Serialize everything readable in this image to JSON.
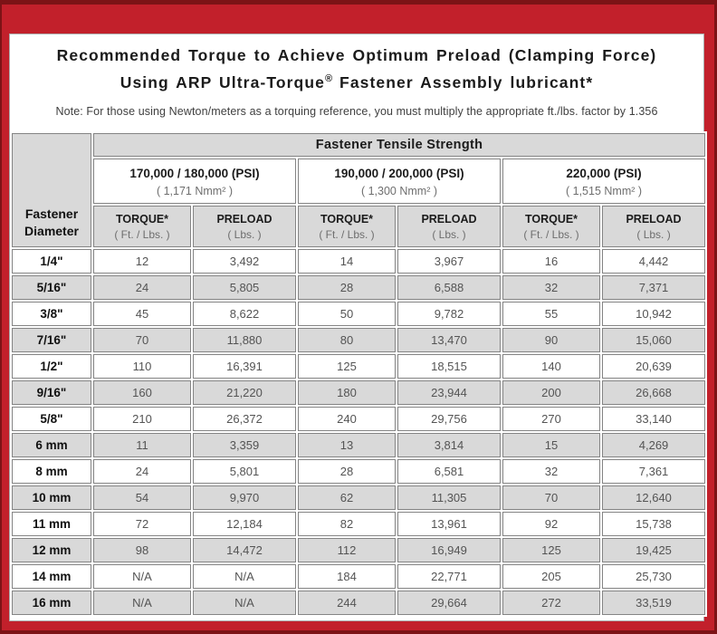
{
  "title": {
    "line1": "Recommended Torque to Achieve Optimum Preload (Clamping Force)",
    "line2_prefix": "Using ARP Ultra-Torque",
    "line2_reg": "®",
    "line2_suffix": " Fastener Assembly lubricant*"
  },
  "note": "Note: For those using Newton/meters as a torquing reference, you must multiply the appropriate ft./lbs. factor by 1.356",
  "colors": {
    "frame_red": "#c2202b",
    "frame_dark_edge": "#7c1316",
    "header_gray": "#d9d9d9",
    "grid_border": "#848484"
  },
  "table": {
    "corner_header": "Fastener Diameter",
    "tensile_header": "Fastener Tensile Strength",
    "groups": [
      {
        "psi": "170,000 / 180,000 (PSI)",
        "nmm": "( 1,171 Nmm² )"
      },
      {
        "psi": "190,000 / 200,000 (PSI)",
        "nmm": "( 1,300 Nmm² )"
      },
      {
        "psi": "220,000 (PSI)",
        "nmm": "( 1,515 Nmm² )"
      }
    ],
    "subheaders": {
      "torque_label": "TORQUE*",
      "torque_unit": "( Ft. / Lbs. )",
      "preload_label": "PRELOAD",
      "preload_unit": "( Lbs. )"
    },
    "rows": [
      {
        "diameter": "1/4\"",
        "values": [
          "12",
          "3,492",
          "14",
          "3,967",
          "16",
          "4,442"
        ]
      },
      {
        "diameter": "5/16\"",
        "values": [
          "24",
          "5,805",
          "28",
          "6,588",
          "32",
          "7,371"
        ]
      },
      {
        "diameter": "3/8\"",
        "values": [
          "45",
          "8,622",
          "50",
          "9,782",
          "55",
          "10,942"
        ]
      },
      {
        "diameter": "7/16\"",
        "values": [
          "70",
          "11,880",
          "80",
          "13,470",
          "90",
          "15,060"
        ]
      },
      {
        "diameter": "1/2\"",
        "values": [
          "110",
          "16,391",
          "125",
          "18,515",
          "140",
          "20,639"
        ]
      },
      {
        "diameter": "9/16\"",
        "values": [
          "160",
          "21,220",
          "180",
          "23,944",
          "200",
          "26,668"
        ]
      },
      {
        "diameter": "5/8\"",
        "values": [
          "210",
          "26,372",
          "240",
          "29,756",
          "270",
          "33,140"
        ]
      },
      {
        "diameter": "6 mm",
        "values": [
          "11",
          "3,359",
          "13",
          "3,814",
          "15",
          "4,269"
        ]
      },
      {
        "diameter": "8 mm",
        "values": [
          "24",
          "5,801",
          "28",
          "6,581",
          "32",
          "7,361"
        ]
      },
      {
        "diameter": "10 mm",
        "values": [
          "54",
          "9,970",
          "62",
          "11,305",
          "70",
          "12,640"
        ]
      },
      {
        "diameter": "11 mm",
        "values": [
          "72",
          "12,184",
          "82",
          "13,961",
          "92",
          "15,738"
        ]
      },
      {
        "diameter": "12 mm",
        "values": [
          "98",
          "14,472",
          "112",
          "16,949",
          "125",
          "19,425"
        ]
      },
      {
        "diameter": "14 mm",
        "values": [
          "N/A",
          "N/A",
          "184",
          "22,771",
          "205",
          "25,730"
        ]
      },
      {
        "diameter": "16 mm",
        "values": [
          "N/A",
          "N/A",
          "244",
          "29,664",
          "272",
          "33,519"
        ]
      }
    ]
  }
}
